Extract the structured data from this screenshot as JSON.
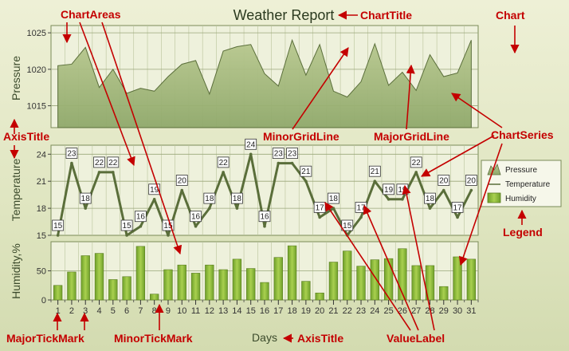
{
  "chart_data": {
    "type": "area",
    "title": "Weather Report",
    "xlabel": "Days",
    "x": [
      1,
      2,
      3,
      4,
      5,
      6,
      7,
      8,
      9,
      10,
      11,
      12,
      13,
      14,
      15,
      16,
      17,
      18,
      19,
      20,
      21,
      22,
      23,
      24,
      25,
      26,
      27,
      28,
      29,
      30,
      31
    ],
    "areas": [
      {
        "name": "Pressure",
        "type": "area",
        "ylabel": "Pressure",
        "ylim": [
          1012,
          1026
        ],
        "yticks": [
          1015,
          1020,
          1025
        ],
        "series": [
          {
            "name": "Pressure",
            "values": [
              1020.5,
              1020.7,
              1023.0,
              1017.5,
              1020.0,
              1016.7,
              1017.4,
              1017.0,
              1019.0,
              1020.7,
              1021.2,
              1016.6,
              1022.5,
              1023.1,
              1023.4,
              1019.4,
              1017.7,
              1024.0,
              1019.2,
              1023.4,
              1017.0,
              1016.2,
              1018.3,
              1023.5,
              1017.8,
              1019.6,
              1017.1,
              1022.0,
              1019.0,
              1019.5,
              1024.0
            ]
          }
        ]
      },
      {
        "name": "Temperature",
        "type": "line",
        "ylabel": "Temperature",
        "ylim": [
          15,
          25
        ],
        "yticks": [
          15,
          18,
          21,
          24
        ],
        "series": [
          {
            "name": "Temperature",
            "values": [
              15,
              23,
              18,
              22,
              22,
              15,
              16,
              19,
              15,
              20,
              16,
              18,
              22,
              18,
              24,
              16,
              23,
              23,
              21,
              17,
              18,
              15,
              17,
              21,
              19,
              19,
              22,
              18,
              20,
              17,
              20
            ]
          }
        ]
      },
      {
        "name": "Humidity",
        "type": "bar",
        "ylabel": "Humidity,%",
        "ylim": [
          0,
          100
        ],
        "yticks": [
          0,
          50
        ],
        "series": [
          {
            "name": "Humidity",
            "values": [
              25,
              48,
              76,
              80,
              35,
              40,
              92,
              10,
              52,
              60,
              46,
              60,
              52,
              70,
              54,
              30,
              73,
              93,
              32,
              12,
              65,
              84,
              58,
              69,
              71,
              88,
              59,
              59,
              23,
              74,
              70
            ]
          }
        ]
      }
    ],
    "legend": {
      "position": "right",
      "entries": [
        "Pressure",
        "Temperature",
        "Humidity"
      ]
    },
    "grid": true
  },
  "annotations": {
    "chart_title": "ChartTitle",
    "chart": "Chart",
    "chart_areas": "ChartAreas",
    "minor_grid_line": "MinorGridLine",
    "major_grid_line": "MajorGridLine",
    "chart_series": "ChartSeries",
    "axis_title_left": "AxisTitle",
    "legend": "Legend",
    "major_tick_mark": "MajorTickMark",
    "minor_tick_mark": "MinorTickMark",
    "axis_title_bottom": "AxisTitle",
    "value_label": "ValueLabel"
  },
  "colors": {
    "annotation": "#c40000",
    "area_fill": "#a3b97a",
    "line": "#5a6e3a",
    "bar": "#8dbb3d",
    "plot_bg": "#eef1dc"
  }
}
